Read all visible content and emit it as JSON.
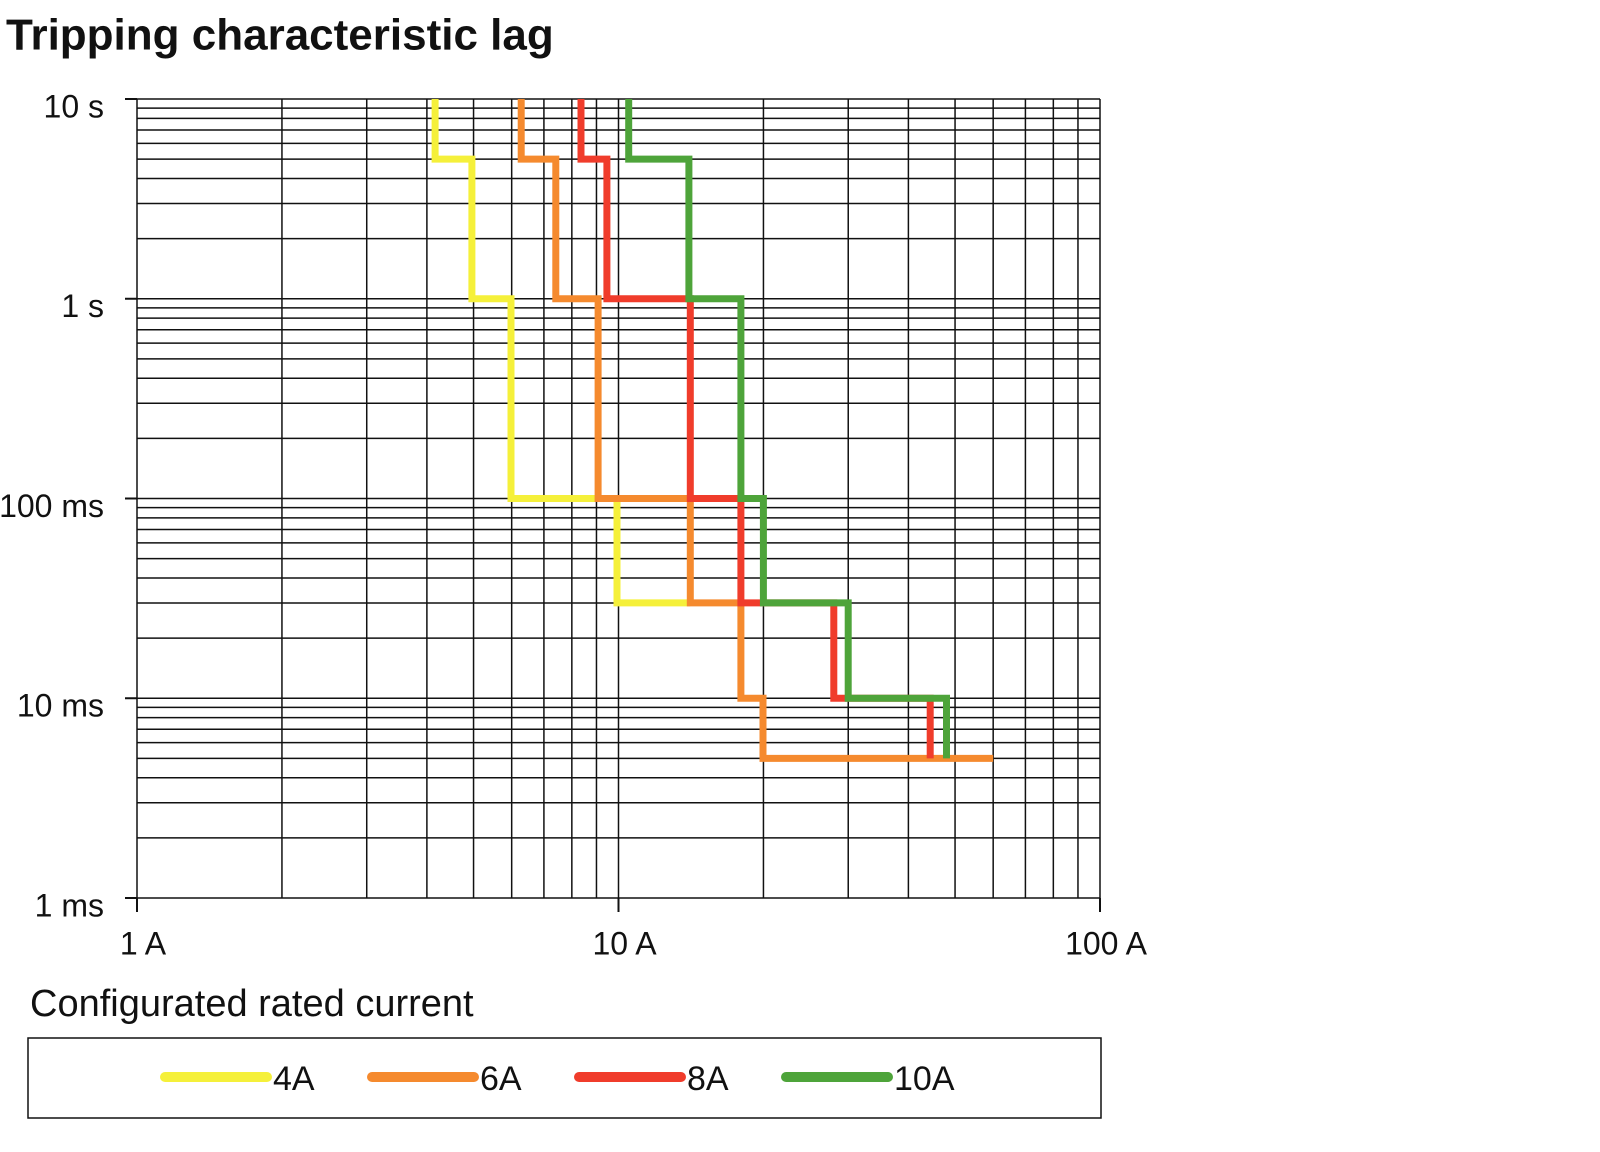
{
  "chart_data": {
    "type": "line",
    "title": "Tripping characteristic lag",
    "xscale": "log",
    "yscale": "log",
    "grid": true,
    "minor_grid": true,
    "xlim": [
      1,
      100
    ],
    "ylim": [
      0.001,
      10
    ],
    "xticks": [
      {
        "value": 1,
        "label": "1 A"
      },
      {
        "value": 10,
        "label": "10 A"
      },
      {
        "value": 100,
        "label": "100 A"
      }
    ],
    "yticks": [
      {
        "value": 10,
        "label": "10 s"
      },
      {
        "value": 1,
        "label": "1 s"
      },
      {
        "value": 0.1,
        "label": "100 ms"
      },
      {
        "value": 0.01,
        "label": "10 ms"
      },
      {
        "value": 0.001,
        "label": "1 ms"
      }
    ],
    "legend_title": "Configurated rated current",
    "series": [
      {
        "name": "4A",
        "color": "#f5f03a",
        "x": [
          4.16,
          4.16,
          4.96,
          4.96,
          5.98,
          5.98,
          9.93,
          9.93,
          14.1
        ],
        "values": [
          10,
          5,
          5,
          1,
          1,
          0.1,
          0.1,
          0.03,
          0.03
        ]
      },
      {
        "name": "6A",
        "color": "#f58a2e",
        "x": [
          6.28,
          6.28,
          7.41,
          7.41,
          9.07,
          9.07,
          14.1,
          14.1,
          17.96,
          17.96,
          19.96,
          19.96,
          60
        ],
        "values": [
          10,
          5,
          5,
          1,
          1,
          0.1,
          0.1,
          0.03,
          0.03,
          0.01,
          0.01,
          0.005,
          0.005
        ]
      },
      {
        "name": "8A",
        "color": "#f03c2b",
        "x": [
          8.36,
          8.36,
          9.46,
          9.46,
          14.1,
          14.1,
          17.96,
          17.96,
          28,
          28,
          44.4,
          44.4
        ],
        "values": [
          10,
          5,
          5,
          1,
          1,
          0.1,
          0.1,
          0.03,
          0.03,
          0.01,
          0.01,
          0.005
        ]
      },
      {
        "name": "10A",
        "color": "#4ea43a",
        "x": [
          10.5,
          10.5,
          14,
          14,
          17.96,
          17.96,
          20,
          20,
          30,
          30,
          48,
          48
        ],
        "values": [
          10,
          5,
          5,
          1,
          1,
          0.1,
          0.1,
          0.03,
          0.03,
          0.01,
          0.01,
          0.005
        ]
      }
    ]
  }
}
